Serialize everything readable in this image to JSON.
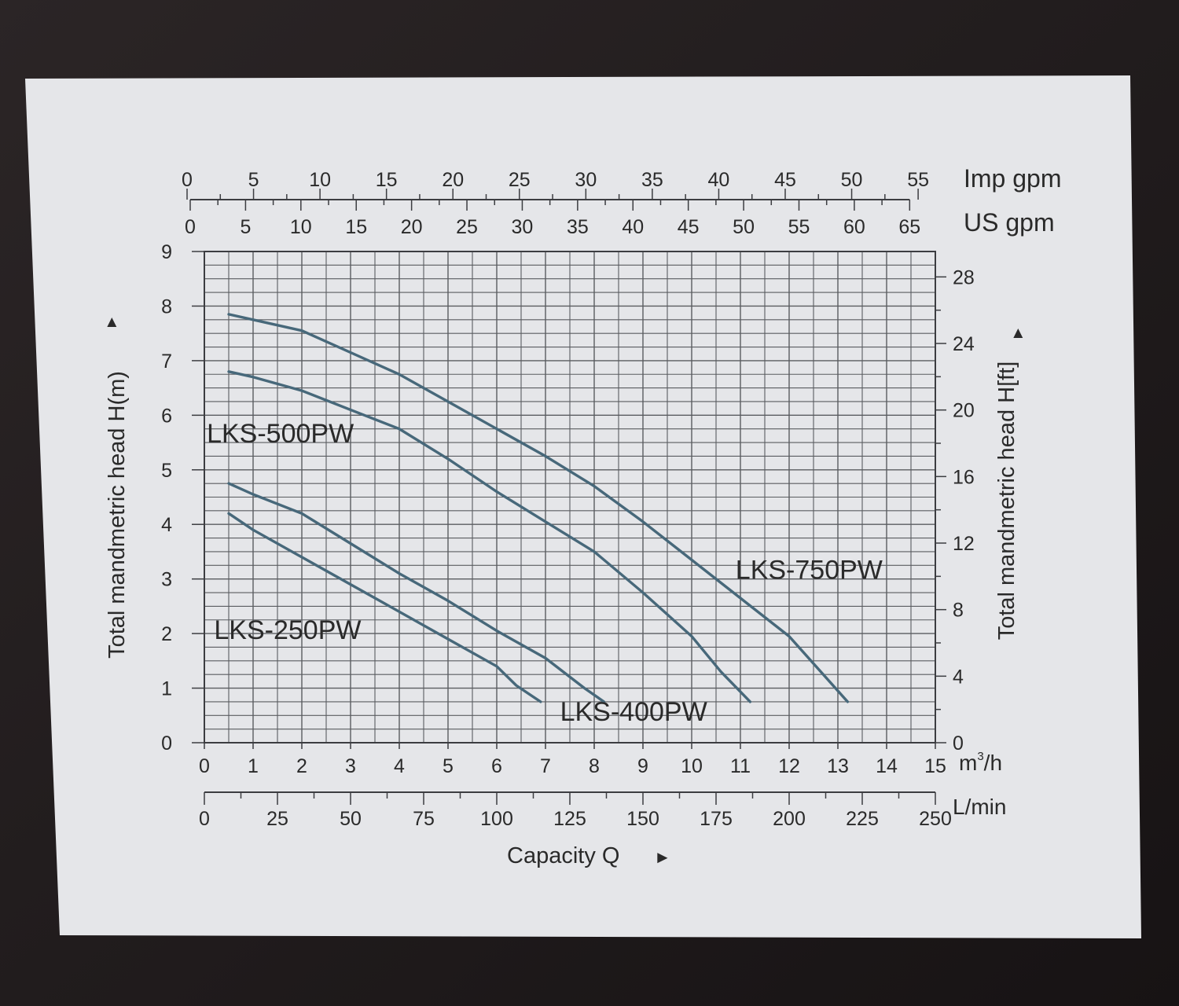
{
  "chart_data": {
    "type": "line",
    "title": "",
    "xlabel": "Capacity Q",
    "xlabel_arrow": "►",
    "ylabel_left": "Total mandmetric head H(m)",
    "ylabel_left_arrow": "►",
    "ylabel_right": "Total mandmetric head H[ft]",
    "ylabel_right_arrow": "►",
    "xlim": [
      0,
      15
    ],
    "ylim": [
      0,
      9
    ],
    "grid": true,
    "x_unit": "m³/h",
    "x_unit_base": "m",
    "x_unit_sup": "3",
    "x_unit_tail": "/h",
    "x_ticks": [
      "0",
      "1",
      "2",
      "3",
      "4",
      "5",
      "6",
      "7",
      "8",
      "9",
      "10",
      "11",
      "12",
      "13",
      "14",
      "15"
    ],
    "y_ticks": [
      "0",
      "1",
      "2",
      "3",
      "4",
      "5",
      "6",
      "7",
      "8",
      "9"
    ],
    "right_axis": {
      "unit": "ft",
      "ticks": [
        {
          "value": 0,
          "label": "0"
        },
        {
          "value": 4,
          "label": "4"
        },
        {
          "value": 8,
          "label": "8"
        },
        {
          "value": 12,
          "label": "12"
        },
        {
          "value": 16,
          "label": "16"
        },
        {
          "value": 20,
          "label": "20"
        },
        {
          "value": 24,
          "label": "24"
        },
        {
          "value": 28,
          "label": "28"
        }
      ]
    },
    "lmin_axis": {
      "unit": "L/min",
      "ticks": [
        {
          "value": 0,
          "label": "0"
        },
        {
          "value": 25,
          "label": "25"
        },
        {
          "value": 50,
          "label": "50"
        },
        {
          "value": 75,
          "label": "75"
        },
        {
          "value": 100,
          "label": "100"
        },
        {
          "value": 125,
          "label": "125"
        },
        {
          "value": 150,
          "label": "150"
        },
        {
          "value": 175,
          "label": "175"
        },
        {
          "value": 200,
          "label": "200"
        },
        {
          "value": 225,
          "label": "225"
        },
        {
          "value": 250,
          "label": "250"
        }
      ]
    },
    "usgpm_axis": {
      "unit": "US gpm",
      "ticks": [
        {
          "value": 0,
          "label": "0"
        },
        {
          "value": 5,
          "label": "5"
        },
        {
          "value": 10,
          "label": "10"
        },
        {
          "value": 15,
          "label": "15"
        },
        {
          "value": 20,
          "label": "20"
        },
        {
          "value": 25,
          "label": "25"
        },
        {
          "value": 30,
          "label": "30"
        },
        {
          "value": 35,
          "label": "35"
        },
        {
          "value": 40,
          "label": "40"
        },
        {
          "value": 45,
          "label": "45"
        },
        {
          "value": 50,
          "label": "50"
        },
        {
          "value": 55,
          "label": "55"
        },
        {
          "value": 60,
          "label": "60"
        },
        {
          "value": 65,
          "label": "65"
        }
      ]
    },
    "impgpm_axis": {
      "unit": "Imp gpm",
      "ticks": [
        {
          "value": 0,
          "label": "0"
        },
        {
          "value": 5,
          "label": "5"
        },
        {
          "value": 10,
          "label": "10"
        },
        {
          "value": 15,
          "label": "15"
        },
        {
          "value": 20,
          "label": "20"
        },
        {
          "value": 25,
          "label": "25"
        },
        {
          "value": 30,
          "label": "30"
        },
        {
          "value": 35,
          "label": "35"
        },
        {
          "value": 40,
          "label": "40"
        },
        {
          "value": 45,
          "label": "45"
        },
        {
          "value": 50,
          "label": "50"
        },
        {
          "value": 55,
          "label": "55"
        }
      ]
    },
    "series": [
      {
        "name": "LKS-250PW",
        "label_at": [
          0.2,
          1.9
        ],
        "x": [
          0.5,
          1,
          2,
          3,
          4,
          5,
          6,
          6.4,
          6.9
        ],
        "y": [
          4.2,
          3.9,
          3.4,
          2.9,
          2.4,
          1.9,
          1.4,
          1.05,
          0.75
        ]
      },
      {
        "name": "LKS-400PW",
        "label_at": [
          7.3,
          0.4
        ],
        "x": [
          0.5,
          1,
          2,
          3,
          4,
          5,
          6,
          7,
          7.8,
          8.2
        ],
        "y": [
          4.75,
          4.55,
          4.2,
          3.65,
          3.1,
          2.6,
          2.05,
          1.55,
          1.0,
          0.75
        ]
      },
      {
        "name": "LKS-500PW",
        "label_at": [
          0.05,
          5.5
        ],
        "x": [
          0.5,
          1,
          2,
          3,
          4,
          5,
          6,
          7,
          8,
          9,
          10,
          10.6,
          11.2
        ],
        "y": [
          6.8,
          6.7,
          6.45,
          6.1,
          5.75,
          5.2,
          4.6,
          4.05,
          3.5,
          2.75,
          1.95,
          1.3,
          0.75
        ]
      },
      {
        "name": "LKS-750PW",
        "label_at": [
          10.9,
          3.0
        ],
        "x": [
          0.5,
          1,
          2,
          3,
          4,
          5,
          6,
          7,
          8,
          9,
          10,
          11,
          12,
          12.6,
          13.2
        ],
        "y": [
          7.85,
          7.75,
          7.55,
          7.15,
          6.75,
          6.25,
          5.75,
          5.25,
          4.7,
          4.05,
          3.35,
          2.65,
          1.95,
          1.35,
          0.75
        ]
      }
    ]
  }
}
